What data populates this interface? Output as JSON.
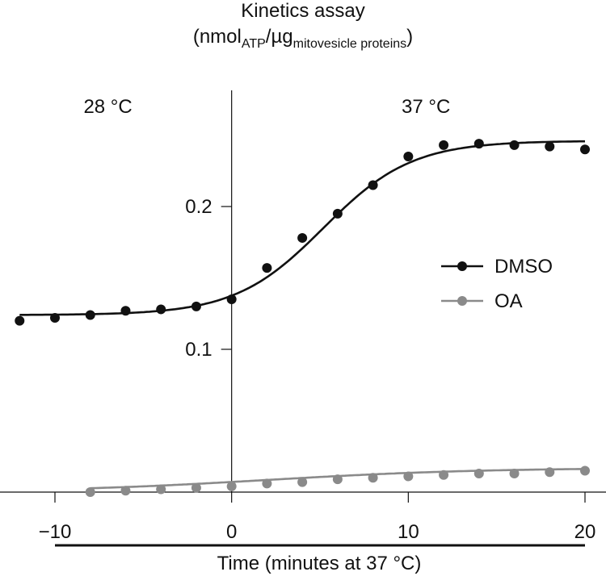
{
  "chart_data": {
    "type": "line",
    "title": "Kinetics assay",
    "ylabel_parts": {
      "open": "(nmol",
      "sub1": "ATP",
      "mid": "/µg",
      "sub2": "mitovesicle proteins",
      "close": ")"
    },
    "xlabel": "Time (minutes at 37 °C)",
    "xlim": [
      -12,
      20
    ],
    "ylim": [
      0,
      0.27
    ],
    "xticks": [
      -10,
      0,
      10,
      20
    ],
    "xtick_labels": [
      "−10",
      "0",
      "10",
      "20"
    ],
    "yticks": [
      0.1,
      0.2
    ],
    "ytick_labels": [
      "0.1",
      "0.2"
    ],
    "regions": [
      {
        "label": "28 °C",
        "x": -7
      },
      {
        "label": "37 °C",
        "x": 11
      }
    ],
    "grid": false,
    "legend": "right",
    "series": [
      {
        "name": "DMSO",
        "color": "#111111",
        "x": [
          -12,
          -10,
          -8,
          -6,
          -4,
          -2,
          0,
          2,
          4,
          6,
          8,
          10,
          12,
          14,
          16,
          18,
          20
        ],
        "y": [
          0.12,
          0.122,
          0.124,
          0.127,
          0.128,
          0.13,
          0.135,
          0.157,
          0.178,
          0.195,
          0.215,
          0.235,
          0.243,
          0.244,
          0.243,
          0.242,
          0.24
        ],
        "fit": {
          "base": 0.124,
          "top": 0.246,
          "mid": 5.2,
          "scale": 2.5
        }
      },
      {
        "name": "OA",
        "color": "#8a8a8a",
        "x": [
          -8,
          -6,
          -4,
          -2,
          0,
          2,
          4,
          6,
          8,
          10,
          12,
          14,
          16,
          18,
          20
        ],
        "y": [
          0.0,
          0.001,
          0.002,
          0.003,
          0.004,
          0.006,
          0.007,
          0.009,
          0.01,
          0.011,
          0.012,
          0.013,
          0.013,
          0.014,
          0.015
        ],
        "fit": {
          "base": 0.0,
          "top": 0.017,
          "mid": 2.0,
          "scale": 6.0
        }
      }
    ]
  }
}
